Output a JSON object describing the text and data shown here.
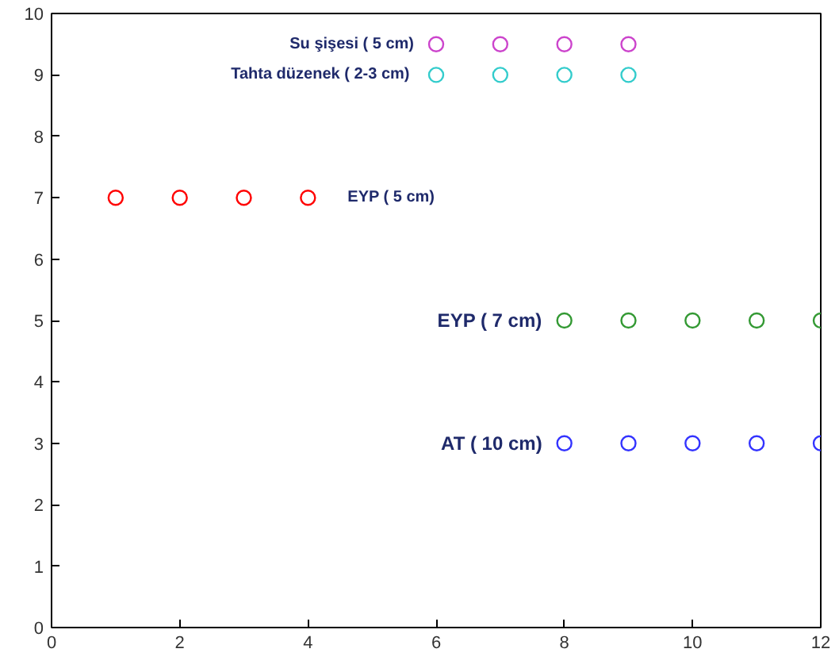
{
  "chart_data": {
    "type": "scatter",
    "marker": "circle",
    "xlim": [
      0,
      12
    ],
    "ylim": [
      0,
      10
    ],
    "xticks": [
      0,
      2,
      4,
      6,
      8,
      10,
      12
    ],
    "yticks": [
      0,
      1,
      2,
      3,
      4,
      5,
      6,
      7,
      8,
      9,
      10
    ],
    "grid": false,
    "legend": false,
    "series": [
      {
        "name": "Su şişesi ( 5 cm)",
        "color": "#cc44cc",
        "x": [
          6,
          7,
          8,
          9
        ],
        "values": [
          9.5,
          9.5,
          9.5,
          9.5
        ]
      },
      {
        "name": "Tahta  düzenek ( 2-3 cm)",
        "color": "#33cccc",
        "x": [
          6,
          7,
          8,
          9
        ],
        "values": [
          9,
          9,
          9,
          9
        ]
      },
      {
        "name": "EYP ( 5 cm)",
        "color": "#ff0000",
        "x": [
          1,
          2,
          3,
          4
        ],
        "values": [
          7,
          7,
          7,
          7
        ]
      },
      {
        "name": "EYP ( 7 cm)",
        "color": "#339933",
        "x": [
          8,
          9,
          10,
          11,
          12
        ],
        "values": [
          5,
          5,
          5,
          5,
          5
        ]
      },
      {
        "name": "AT ( 10 cm)",
        "color": "#3333ff",
        "x": [
          8,
          9,
          10,
          11,
          12
        ],
        "values": [
          3,
          3,
          3,
          3,
          3
        ]
      }
    ]
  }
}
